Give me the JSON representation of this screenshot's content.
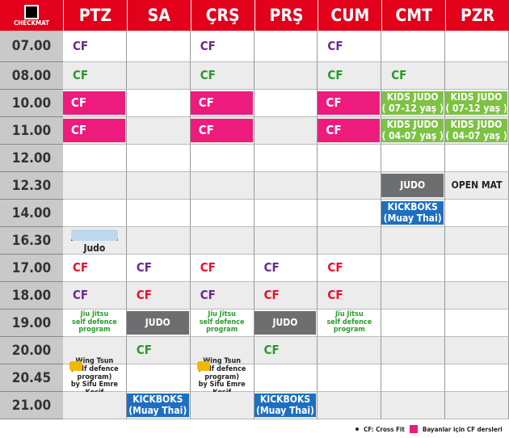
{
  "logo": "CHECKMAT",
  "days": [
    "PTZ",
    "SA",
    "ÇRŞ",
    "PRŞ",
    "CUM",
    "CMT",
    "PZR"
  ],
  "rows": [
    {
      "time": "07.00",
      "cells": [
        {
          "lines": [
            "CF"
          ],
          "color": "#6a2a8c"
        },
        null,
        {
          "lines": [
            "CF"
          ],
          "color": "#6a2a8c"
        },
        null,
        {
          "lines": [
            "CF"
          ],
          "color": "#6a2a8c"
        },
        null,
        null
      ]
    },
    {
      "time": "08.00",
      "cells": [
        {
          "lines": [
            "CF"
          ],
          "color": "#2a9a2a"
        },
        null,
        {
          "lines": [
            "CF"
          ],
          "color": "#2a9a2a"
        },
        null,
        {
          "lines": [
            "CF"
          ],
          "color": "#2a9a2a"
        },
        {
          "lines": [
            "CF"
          ],
          "color": "#2a9a2a"
        },
        null
      ]
    },
    {
      "time": "10.00",
      "cells": [
        {
          "lines": [
            "CF"
          ],
          "color": "#ffffff",
          "bg": "#ec1b7c"
        },
        null,
        {
          "lines": [
            "CF"
          ],
          "color": "#ffffff",
          "bg": "#ec1b7c"
        },
        null,
        {
          "lines": [
            "CF"
          ],
          "color": "#ffffff",
          "bg": "#ec1b7c"
        },
        {
          "lines": [
            "KIDS JUDO",
            "( 07-12 yaş )"
          ],
          "color": "#ffffff",
          "bg": "#7dc242"
        },
        {
          "lines": [
            "KIDS JUDO",
            "( 07-12 yaş )"
          ],
          "color": "#ffffff",
          "bg": "#7dc242"
        }
      ]
    },
    {
      "time": "11.00",
      "cells": [
        {
          "lines": [
            "CF"
          ],
          "color": "#ffffff",
          "bg": "#ec1b7c"
        },
        null,
        {
          "lines": [
            "CF"
          ],
          "color": "#ffffff",
          "bg": "#ec1b7c"
        },
        null,
        {
          "lines": [
            "CF"
          ],
          "color": "#ffffff",
          "bg": "#ec1b7c"
        },
        {
          "lines": [
            "KIDS JUDO",
            "( 04-07 yaş )"
          ],
          "color": "#ffffff",
          "bg": "#7dc242"
        },
        {
          "lines": [
            "KIDS JUDO",
            "( 04-07 yaş )"
          ],
          "color": "#ffffff",
          "bg": "#7dc242"
        }
      ]
    },
    {
      "time": "12.00",
      "cells": [
        null,
        null,
        null,
        null,
        null,
        null,
        null
      ]
    },
    {
      "time": "12.30",
      "cells": [
        null,
        null,
        null,
        null,
        null,
        {
          "lines": [
            "JUDO"
          ],
          "color": "#ffffff",
          "bg": "#6d6e70"
        },
        {
          "lines": [
            "OPEN MAT"
          ],
          "color": "#222222"
        }
      ]
    },
    {
      "time": "14.00",
      "cells": [
        null,
        null,
        null,
        null,
        null,
        {
          "lines": [
            "KICKBOKS",
            "(Muay Thai)"
          ],
          "color": "#ffffff",
          "bg": "#1e6fbf"
        },
        null
      ]
    },
    {
      "time": "16.30",
      "cells": [
        {
          "lines": [
            "Enka Kids Judo"
          ],
          "color": "#222222"
        },
        null,
        null,
        null,
        null,
        null,
        null
      ]
    },
    {
      "time": "17.00",
      "cells": [
        {
          "lines": [
            "CF"
          ],
          "color": "#e8102a"
        },
        {
          "lines": [
            "CF"
          ],
          "color": "#6a2a8c"
        },
        {
          "lines": [
            "CF"
          ],
          "color": "#e8102a"
        },
        {
          "lines": [
            "CF"
          ],
          "color": "#6a2a8c"
        },
        {
          "lines": [
            "CF"
          ],
          "color": "#e8102a"
        },
        null,
        null
      ]
    },
    {
      "time": "18.00",
      "cells": [
        {
          "lines": [
            "CF"
          ],
          "color": "#6a2a8c"
        },
        {
          "lines": [
            "CF"
          ],
          "color": "#e8102a"
        },
        {
          "lines": [
            "CF"
          ],
          "color": "#6a2a8c"
        },
        {
          "lines": [
            "CF"
          ],
          "color": "#e8102a"
        },
        {
          "lines": [
            "CF"
          ],
          "color": "#e8102a"
        },
        null,
        null
      ]
    },
    {
      "time": "19.00",
      "cells": [
        {
          "lines": [
            "Jiu Jitsu",
            "self defence",
            "program"
          ],
          "color": "#2a9a2a"
        },
        {
          "lines": [
            "JUDO"
          ],
          "color": "#ffffff",
          "bg": "#6d6e70"
        },
        {
          "lines": [
            "Jiu Jitsu",
            "self defence",
            "program"
          ],
          "color": "#2a9a2a"
        },
        {
          "lines": [
            "JUDO"
          ],
          "color": "#ffffff",
          "bg": "#6d6e70"
        },
        {
          "lines": [
            "Jiu Jitsu",
            "self defence",
            "program"
          ],
          "color": "#2a9a2a"
        },
        null,
        null
      ]
    },
    {
      "time": "20.00",
      "cells": [
        null,
        {
          "lines": [
            "CF"
          ],
          "color": "#2a9a2a"
        },
        null,
        {
          "lines": [
            "CF"
          ],
          "color": "#2a9a2a"
        },
        null,
        null,
        null
      ]
    },
    {
      "time": "20.45",
      "cells": [
        {
          "lines": [
            "Wing Tsun",
            "(self defence program)",
            "by Sifu Emre Kosif"
          ],
          "color": "#222222"
        },
        null,
        {
          "lines": [
            "Wing Tsun",
            "(self defence program)",
            "by Sifu Emre Kosif"
          ],
          "color": "#222222"
        },
        null,
        null,
        null,
        null
      ]
    },
    {
      "time": "21.00",
      "cells": [
        null,
        {
          "lines": [
            "KICKBOKS",
            "(Muay Thai)"
          ],
          "color": "#ffffff",
          "bg": "#1e6fbf"
        },
        null,
        {
          "lines": [
            "KICKBOKS",
            "(Muay Thai)"
          ],
          "color": "#ffffff",
          "bg": "#1e6fbf"
        },
        null,
        null,
        null
      ]
    }
  ],
  "legend": [
    {
      "text": "CF: Cross Fit",
      "color": "#222222"
    },
    {
      "text": "Bayanlar için CF dersleri",
      "color": "#ec1b7c"
    }
  ]
}
